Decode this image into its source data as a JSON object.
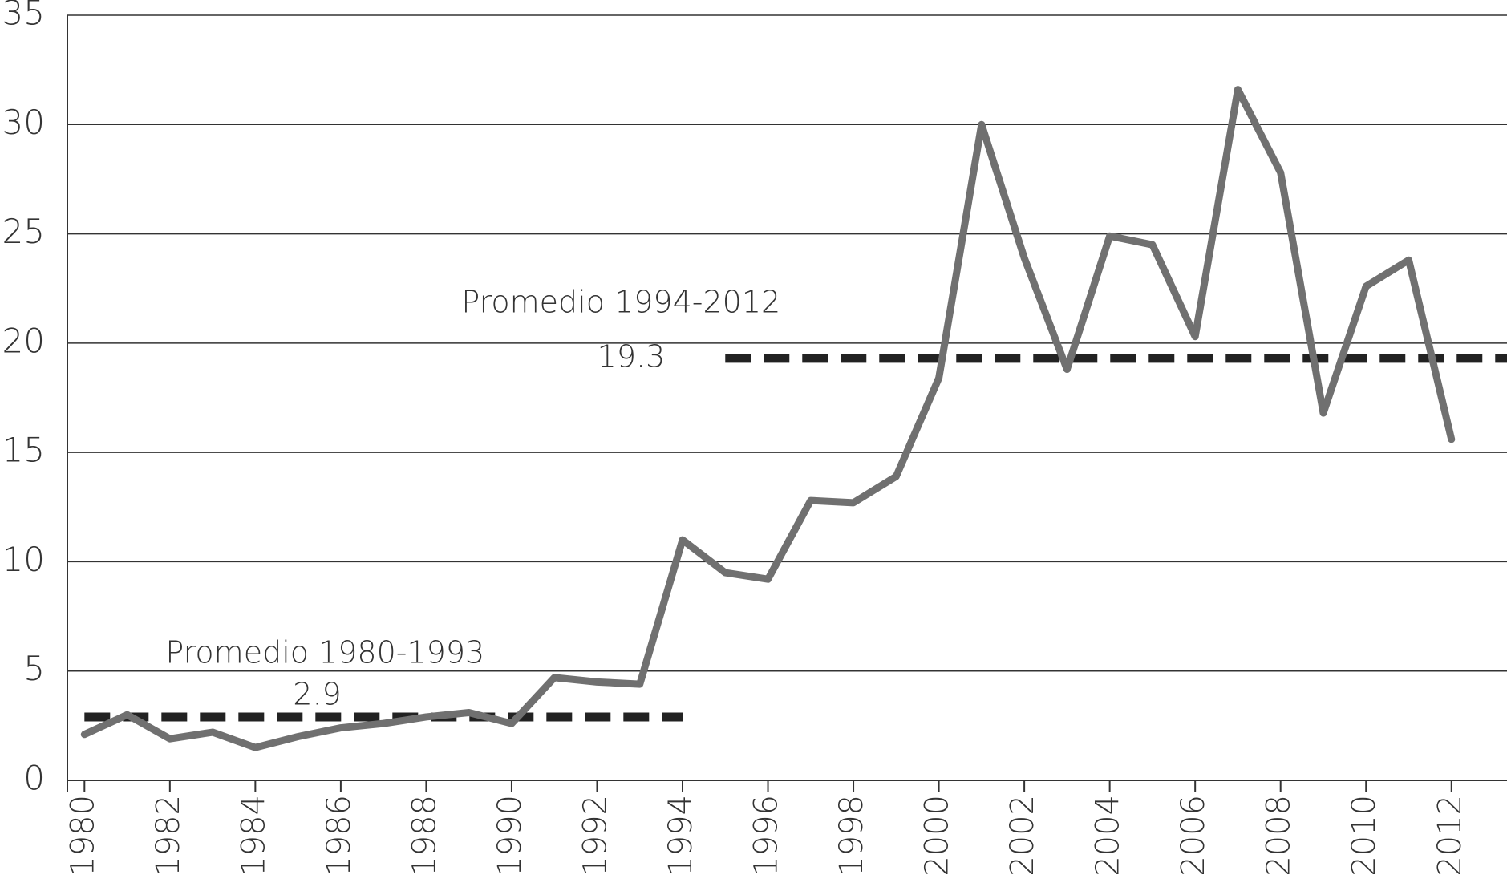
{
  "chart_data": {
    "type": "line",
    "x": [
      1980,
      1981,
      1982,
      1983,
      1984,
      1985,
      1986,
      1987,
      1988,
      1989,
      1990,
      1991,
      1992,
      1993,
      1994,
      1995,
      1996,
      1997,
      1998,
      1999,
      2000,
      2001,
      2002,
      2003,
      2004,
      2005,
      2006,
      2007,
      2008,
      2009,
      2010,
      2011,
      2012
    ],
    "series": [
      {
        "color": "#707070",
        "values": [
          2.1,
          3.0,
          1.9,
          2.2,
          1.5,
          2.0,
          2.4,
          2.6,
          2.9,
          3.1,
          2.6,
          4.7,
          4.5,
          4.4,
          11.0,
          9.5,
          9.2,
          12.8,
          12.7,
          13.9,
          18.4,
          30.0,
          23.9,
          18.8,
          24.9,
          24.5,
          20.3,
          31.6,
          27.8,
          16.8,
          22.6,
          23.8,
          15.6
        ]
      }
    ],
    "averages": [
      {
        "label": "Promedio 1980-1993",
        "value": 2.9,
        "value_label": "2.9",
        "x": [
          1980,
          1994
        ]
      },
      {
        "label": "Promedio 1994-2012",
        "value": 19.3,
        "value_label": "19.3",
        "x": [
          1995,
          2013.3
        ]
      }
    ],
    "average_color": "#222222",
    "xlim": [
      1979.6,
      2013.3
    ],
    "xticks": [
      1980,
      1982,
      1984,
      1986,
      1988,
      1990,
      1992,
      1994,
      1996,
      1998,
      2000,
      2002,
      2004,
      2006,
      2008,
      2010,
      2012
    ],
    "ylim": [
      0,
      35
    ],
    "yticks": [
      0,
      5,
      10,
      15,
      20,
      25,
      30,
      35
    ],
    "grid": true
  }
}
